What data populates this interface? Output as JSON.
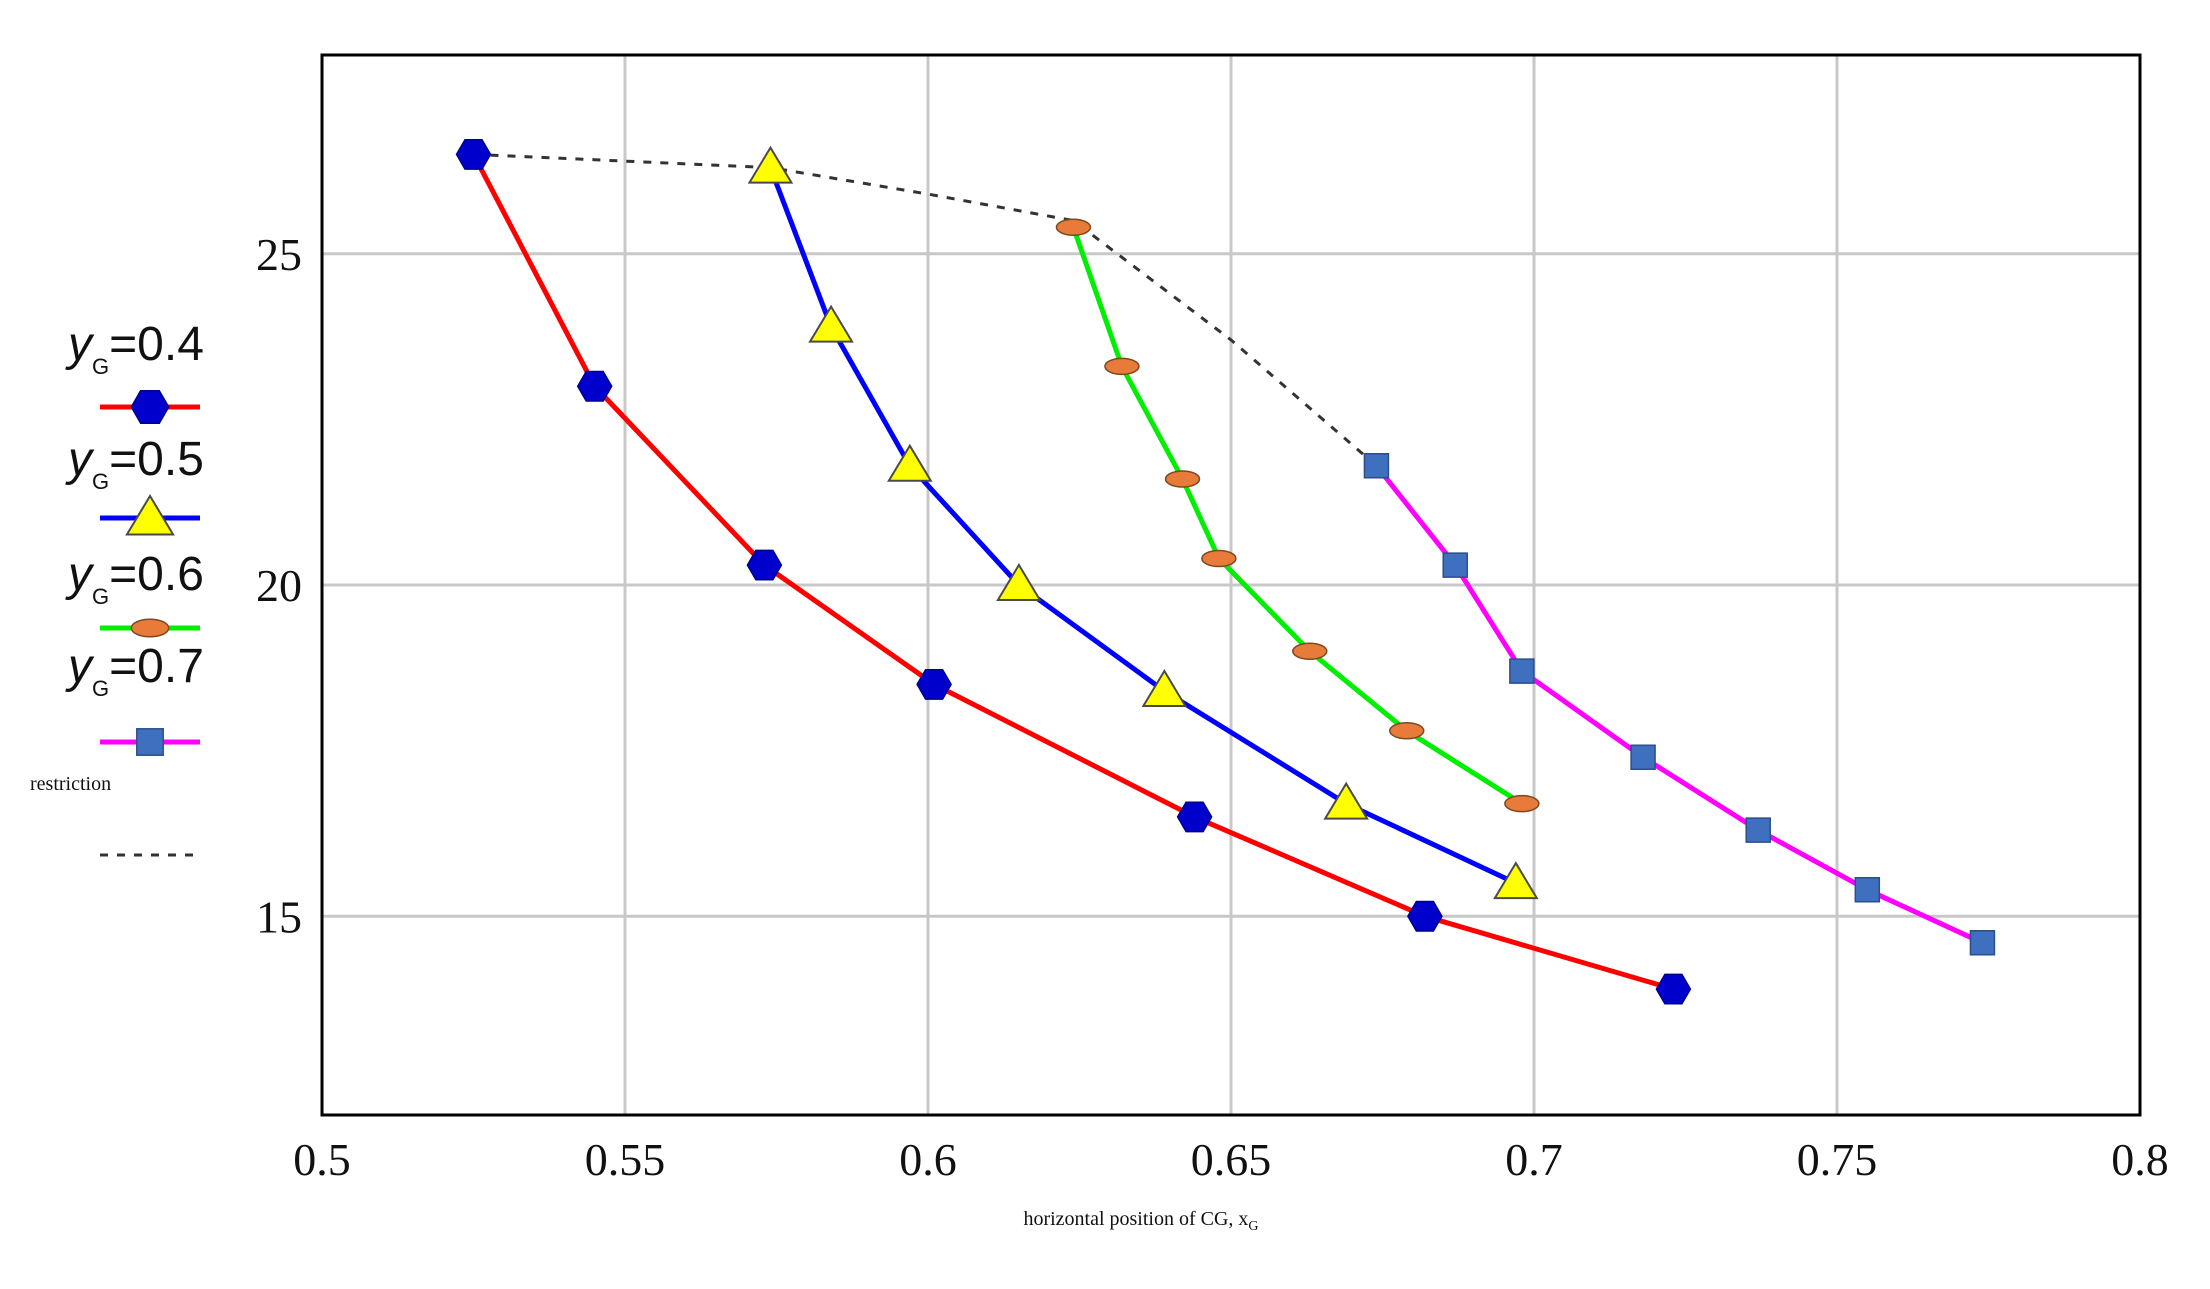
{
  "chart_data": {
    "type": "line",
    "title": "",
    "xlabel": "horizontal position of CG, x",
    "xlabel_sub": "G",
    "ylabel": "",
    "xlim": [
      0.5,
      0.8
    ],
    "ylim": [
      12,
      28
    ],
    "x_ticks": [
      0.5,
      0.55,
      0.6,
      0.65,
      0.7,
      0.75,
      0.8
    ],
    "y_ticks": [
      15,
      20,
      25
    ],
    "x_tick_labels": [
      "0.5",
      "0.55",
      "0.6",
      "0.65",
      "0.7",
      "0.75",
      "0.8"
    ],
    "y_tick_labels": [
      "15",
      "20",
      "25"
    ],
    "grid": true,
    "legend_position": "left",
    "legend_var": "y",
    "legend_sub": "G",
    "series": [
      {
        "name": "=0.4",
        "color": "#ff0000",
        "marker": "hexagon",
        "marker_color": "#0000cc",
        "points": [
          [
            0.525,
            26.5
          ],
          [
            0.545,
            23.0
          ],
          [
            0.573,
            20.3
          ],
          [
            0.601,
            18.5
          ],
          [
            0.644,
            16.5
          ],
          [
            0.682,
            15.0
          ],
          [
            0.723,
            13.9
          ]
        ]
      },
      {
        "name": "=0.5",
        "color": "#0000ff",
        "marker": "triangle",
        "marker_color": "#ffff00",
        "points": [
          [
            0.574,
            26.3
          ],
          [
            0.584,
            23.9
          ],
          [
            0.597,
            21.8
          ],
          [
            0.615,
            20.0
          ],
          [
            0.639,
            18.4
          ],
          [
            0.669,
            16.7
          ],
          [
            0.697,
            15.5
          ]
        ]
      },
      {
        "name": "=0.6",
        "color": "#00ee00",
        "marker": "ellipse",
        "marker_color": "#e87a3a",
        "points": [
          [
            0.624,
            25.4
          ],
          [
            0.632,
            23.3
          ],
          [
            0.642,
            21.6
          ],
          [
            0.648,
            20.4
          ],
          [
            0.663,
            19.0
          ],
          [
            0.679,
            17.8
          ],
          [
            0.698,
            16.7
          ]
        ]
      },
      {
        "name": "=0.7",
        "color": "#ff00ff",
        "marker": "square",
        "marker_color": "#3f6fbf",
        "points": [
          [
            0.674,
            21.8
          ],
          [
            0.687,
            20.3
          ],
          [
            0.698,
            18.7
          ],
          [
            0.718,
            17.4
          ],
          [
            0.737,
            16.3
          ],
          [
            0.755,
            15.4
          ],
          [
            0.774,
            14.6
          ]
        ]
      },
      {
        "name": "restriction",
        "color": "#333333",
        "marker": "none",
        "dashed": true,
        "points": [
          [
            0.525,
            26.5
          ],
          [
            0.574,
            26.3
          ],
          [
            0.6,
            25.9
          ],
          [
            0.624,
            25.5
          ],
          [
            0.65,
            23.7
          ],
          [
            0.674,
            21.8
          ]
        ]
      }
    ]
  }
}
